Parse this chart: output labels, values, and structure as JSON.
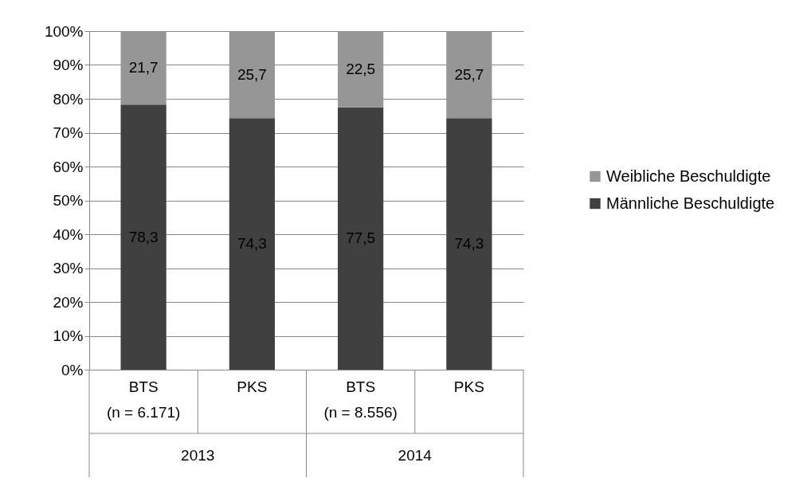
{
  "chart_data": {
    "type": "bar",
    "stacked": true,
    "categories": [
      "BTS\n(n = 6.171)",
      "PKS",
      "BTS\n(n = 8.556)",
      "PKS"
    ],
    "annotations": [
      "2013",
      "2014"
    ],
    "series": [
      {
        "name": "Männliche Beschuldigte",
        "color": "#404040",
        "values": [
          78.3,
          74.3,
          77.5,
          74.3
        ],
        "value_labels": [
          "78,3",
          "74,3",
          "77,5",
          "74,3"
        ]
      },
      {
        "name": "Weibliche Beschuldigte",
        "color": "#969696",
        "values": [
          21.7,
          25.7,
          22.5,
          25.7
        ],
        "value_labels": [
          "21,7",
          "25,7",
          "22,5",
          "25,7"
        ]
      }
    ],
    "ylim": [
      0,
      100
    ],
    "yticks": [
      {
        "value": 0,
        "label": "0%"
      },
      {
        "value": 10,
        "label": "10%"
      },
      {
        "value": 20,
        "label": "20%"
      },
      {
        "value": 30,
        "label": "30%"
      },
      {
        "value": 40,
        "label": "40%"
      },
      {
        "value": 50,
        "label": "50%"
      },
      {
        "value": 60,
        "label": "60%"
      },
      {
        "value": 70,
        "label": "70%"
      },
      {
        "value": 80,
        "label": "80%"
      },
      {
        "value": 90,
        "label": "90%"
      },
      {
        "value": 100,
        "label": "100%"
      }
    ],
    "grid": "y",
    "legend": "right"
  }
}
